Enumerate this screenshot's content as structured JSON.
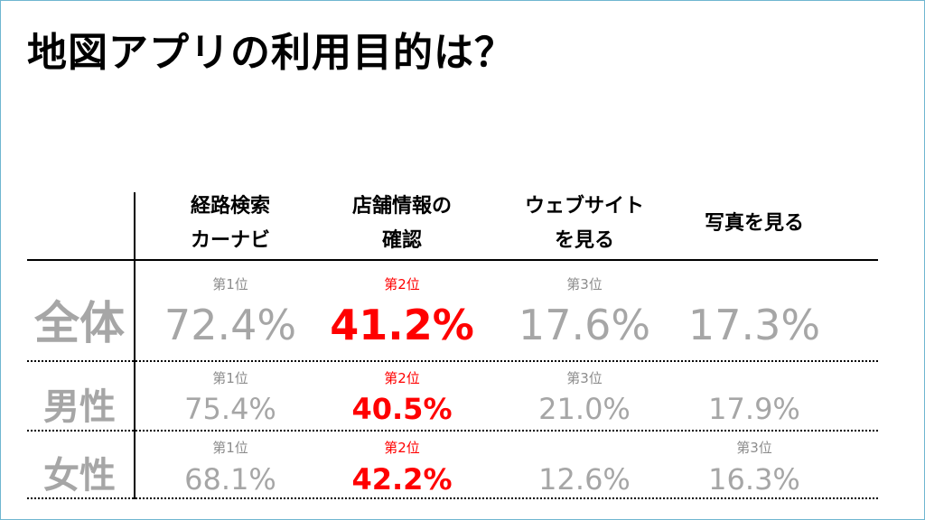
{
  "title": "地図アプリの利用目的は？",
  "colors": {
    "highlight": "#ff0000",
    "muted": "#a6a6a6",
    "rank": "#8c8c8c"
  },
  "headers": [
    [
      "経路検索",
      "カーナビ"
    ],
    [
      "店舗情報の",
      "確認"
    ],
    [
      "ウェブサイト",
      "を見る"
    ],
    [
      "写真を見る"
    ]
  ],
  "rows": [
    {
      "label": "全体",
      "ranks": [
        "第1位",
        "第2位",
        "第3位",
        ""
      ],
      "values": [
        "72.4%",
        "41.2%",
        "17.6%",
        "17.3%"
      ]
    },
    {
      "label": "男性",
      "ranks": [
        "第1位",
        "第2位",
        "第3位",
        ""
      ],
      "values": [
        "75.4%",
        "40.5%",
        "21.0%",
        "17.9%"
      ]
    },
    {
      "label": "女性",
      "ranks": [
        "第1位",
        "第2位",
        "",
        "第3位"
      ],
      "values": [
        "68.1%",
        "42.2%",
        "12.6%",
        "16.3%"
      ]
    }
  ],
  "chart_data": {
    "type": "table",
    "title": "地図アプリの利用目的は？",
    "categories": [
      "経路検索カーナビ",
      "店舗情報の確認",
      "ウェブサイトを見る",
      "写真を見る"
    ],
    "series": [
      {
        "name": "全体",
        "values": [
          72.4,
          41.2,
          17.6,
          17.3
        ]
      },
      {
        "name": "男性",
        "values": [
          75.4,
          40.5,
          21.0,
          17.9
        ]
      },
      {
        "name": "女性",
        "values": [
          68.1,
          42.2,
          12.6,
          16.3
        ]
      }
    ]
  }
}
